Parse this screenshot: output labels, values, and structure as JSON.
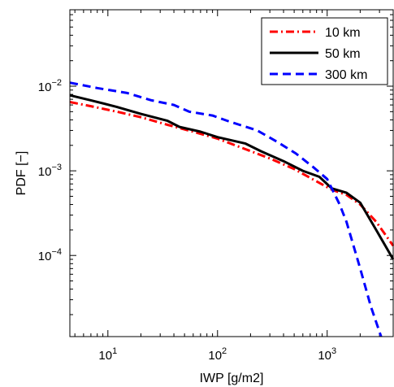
{
  "chart_data": {
    "type": "line",
    "xlabel": "IWP [g/m2]",
    "ylabel": "PDF [−]",
    "x_scale": "log",
    "y_scale": "log",
    "xlim": [
      4.5,
      4000
    ],
    "ylim": [
      1.1e-05,
      0.08
    ],
    "x_ticks": [
      {
        "value": 10,
        "mantissa": "10",
        "exp": "1"
      },
      {
        "value": 100,
        "mantissa": "10",
        "exp": "2"
      },
      {
        "value": 1000,
        "mantissa": "10",
        "exp": "3"
      }
    ],
    "y_ticks": [
      {
        "value": 0.01,
        "mantissa": "10",
        "exp": "−2"
      },
      {
        "value": 0.001,
        "mantissa": "10",
        "exp": "−3"
      },
      {
        "value": 0.0001,
        "mantissa": "10",
        "exp": "−4"
      }
    ],
    "grid": false,
    "legend_position": "top-right",
    "series": [
      {
        "name": "10 km",
        "color": "#ff0000",
        "style": "dashdot",
        "points": [
          [
            4.5,
            0.0065
          ],
          [
            7,
            0.0058
          ],
          [
            12,
            0.005
          ],
          [
            20,
            0.0043
          ],
          [
            35,
            0.0035
          ],
          [
            60,
            0.0029
          ],
          [
            100,
            0.0024
          ],
          [
            180,
            0.0018
          ],
          [
            300,
            0.0014
          ],
          [
            500,
            0.00105
          ],
          [
            800,
            0.00075
          ],
          [
            1100,
            0.0006
          ],
          [
            1500,
            0.00052
          ],
          [
            2000,
            0.0004
          ],
          [
            2800,
            0.00025
          ],
          [
            4000,
            0.00013
          ]
        ]
      },
      {
        "name": "50 km",
        "color": "#000000",
        "style": "solid",
        "points": [
          [
            4.5,
            0.0078
          ],
          [
            7,
            0.0068
          ],
          [
            12,
            0.0057
          ],
          [
            20,
            0.0047
          ],
          [
            35,
            0.0039
          ],
          [
            45,
            0.0033
          ],
          [
            70,
            0.0029
          ],
          [
            100,
            0.0025
          ],
          [
            180,
            0.0021
          ],
          [
            250,
            0.0017
          ],
          [
            400,
            0.0013
          ],
          [
            600,
            0.001
          ],
          [
            850,
            0.00085
          ],
          [
            1100,
            0.00062
          ],
          [
            1500,
            0.00055
          ],
          [
            2000,
            0.00042
          ],
          [
            2800,
            0.0002
          ],
          [
            4000,
            9e-05
          ]
        ]
      },
      {
        "name": "300 km",
        "color": "#0000ff",
        "style": "dashed",
        "points": [
          [
            4.5,
            0.011
          ],
          [
            8,
            0.0095
          ],
          [
            15,
            0.0083
          ],
          [
            25,
            0.0068
          ],
          [
            40,
            0.006
          ],
          [
            55,
            0.005
          ],
          [
            90,
            0.0045
          ],
          [
            130,
            0.0038
          ],
          [
            230,
            0.003
          ],
          [
            350,
            0.0022
          ],
          [
            520,
            0.0016
          ],
          [
            750,
            0.0011
          ],
          [
            1000,
            0.0008
          ],
          [
            1300,
            0.0004
          ],
          [
            1500,
            0.00025
          ],
          [
            2000,
            7e-05
          ],
          [
            2500,
            2.5e-05
          ],
          [
            3100,
            1.1e-05
          ]
        ]
      }
    ]
  }
}
